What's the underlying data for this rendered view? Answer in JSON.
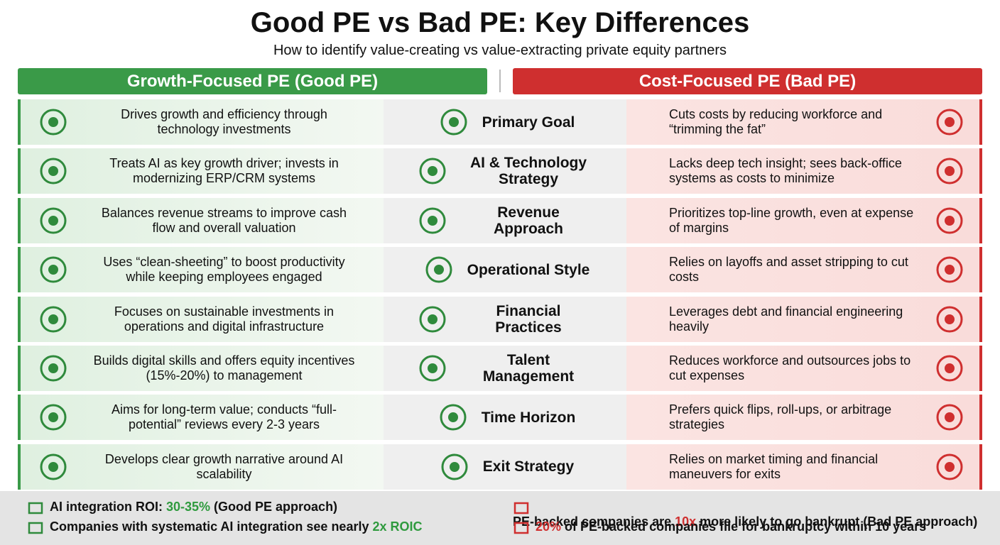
{
  "header": {
    "title": "Good PE vs Bad PE: Key Differences",
    "subtitle": "How to identify value-creating vs value-extracting private equity partners"
  },
  "columns": {
    "good": "Growth-Focused PE (Good PE)",
    "bad": "Cost-Focused PE (Bad PE)"
  },
  "rows": [
    {
      "good": "Drives growth and efficiency through technology investments",
      "label": "Primary Goal",
      "bad": "Cuts costs by reducing workforce and “trimming the fat”"
    },
    {
      "good": "Treats AI as key growth driver; invests in modernizing ERP/CRM systems",
      "label": "AI & Technology Strategy",
      "bad": "Lacks deep tech insight; sees back-office systems as costs to minimize"
    },
    {
      "good": "Balances revenue streams to improve cash flow and overall valuation",
      "label": "Revenue Approach",
      "bad": "Prioritizes top-line growth, even at expense of margins"
    },
    {
      "good": "Uses “clean-sheeting” to boost productivity while keeping employees engaged",
      "label": "Operational Style",
      "bad": "Relies on layoffs and asset stripping to cut costs"
    },
    {
      "good": "Focuses on sustainable investments in operations and digital infrastructure",
      "label": "Financial Practices",
      "bad": "Leverages debt and financial engineering heavily"
    },
    {
      "good": "Builds digital skills and offers equity incentives (15%-20%) to management",
      "label": "Talent Management",
      "bad": "Reduces workforce and outsources jobs to cut expenses"
    },
    {
      "good": "Aims for long-term value; conducts “full-potential” reviews every 2-3 years",
      "label": "Time Horizon",
      "bad": "Prefers quick flips, roll-ups, or arbitrage strategies"
    },
    {
      "good": "Develops clear growth narrative around AI scalability",
      "label": "Exit Strategy",
      "bad": "Relies on market timing and financial maneuvers for exits"
    }
  ],
  "footer": {
    "good": [
      {
        "parts": [
          "AI integration ROI: ",
          "30-35%",
          " (Good PE approach)"
        ],
        "highlight": 1
      },
      {
        "parts": [
          "Companies with systematic AI integration see nearly ",
          "2x ROIC"
        ],
        "highlight": 1
      }
    ],
    "bad": [
      {
        "parts": [
          "PE-backed companies are ",
          "10x",
          " more likely to go bankrupt (Bad PE approach)"
        ],
        "highlight": 1
      },
      {
        "parts": [
          "20%",
          " of PE-backed companies file for bankruptcy within 10 years"
        ],
        "highlight": 0
      }
    ]
  }
}
